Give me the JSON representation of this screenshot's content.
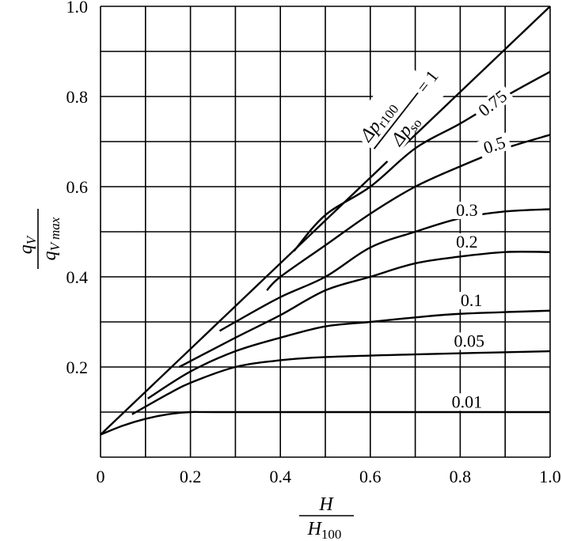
{
  "chart_data": {
    "type": "line",
    "title": "",
    "xlabel": {
      "numerator": "H",
      "denominator": "H",
      "denominator_sub": "100"
    },
    "ylabel": {
      "numerator": "q",
      "numerator_sub": "V",
      "denominator": "q",
      "denominator_sub": "V max"
    },
    "xlim": [
      0,
      1.0
    ],
    "ylim": [
      0,
      1.0
    ],
    "grid": true,
    "xticks": [
      "0",
      "0.2",
      "0.4",
      "0.6",
      "0.8",
      "1.0"
    ],
    "yticks": [
      "0.2",
      "0.4",
      "0.6",
      "0.8",
      "1.0"
    ],
    "parameter_label": {
      "num": "Δp",
      "num_sub": "r100",
      "den": "Δp",
      "den_sub": "so",
      "eq": "= 1"
    },
    "series": [
      {
        "name": "1",
        "label": "",
        "points": [
          [
            0,
            0.05
          ],
          [
            1.0,
            1.0
          ]
        ]
      },
      {
        "name": "0.75",
        "label": "0.75",
        "points": [
          [
            0.43,
            0.457
          ],
          [
            0.5,
            0.537
          ],
          [
            0.6,
            0.6
          ],
          [
            0.7,
            0.685
          ],
          [
            0.8,
            0.74
          ],
          [
            0.9,
            0.8
          ],
          [
            1.0,
            0.855
          ]
        ]
      },
      {
        "name": "0.5",
        "label": "0.5",
        "points": [
          [
            0.37,
            0.37
          ],
          [
            0.4,
            0.4
          ],
          [
            0.5,
            0.47
          ],
          [
            0.6,
            0.54
          ],
          [
            0.7,
            0.6
          ],
          [
            0.8,
            0.645
          ],
          [
            0.9,
            0.685
          ],
          [
            1.0,
            0.715
          ]
        ]
      },
      {
        "name": "0.3",
        "label": "0.3",
        "points": [
          [
            0.265,
            0.28
          ],
          [
            0.3,
            0.3
          ],
          [
            0.4,
            0.355
          ],
          [
            0.5,
            0.4
          ],
          [
            0.6,
            0.465
          ],
          [
            0.7,
            0.5
          ],
          [
            0.8,
            0.53
          ],
          [
            0.9,
            0.545
          ],
          [
            1.0,
            0.55
          ]
        ]
      },
      {
        "name": "0.2",
        "label": "0.2",
        "points": [
          [
            0.175,
            0.2
          ],
          [
            0.3,
            0.265
          ],
          [
            0.4,
            0.315
          ],
          [
            0.5,
            0.37
          ],
          [
            0.6,
            0.4
          ],
          [
            0.7,
            0.43
          ],
          [
            0.8,
            0.445
          ],
          [
            0.9,
            0.455
          ],
          [
            1.0,
            0.455
          ]
        ]
      },
      {
        "name": "0.1",
        "label": "0.1",
        "points": [
          [
            0.105,
            0.13
          ],
          [
            0.2,
            0.19
          ],
          [
            0.3,
            0.235
          ],
          [
            0.4,
            0.265
          ],
          [
            0.5,
            0.29
          ],
          [
            0.6,
            0.3
          ],
          [
            0.7,
            0.31
          ],
          [
            0.8,
            0.318
          ],
          [
            1.0,
            0.325
          ]
        ]
      },
      {
        "name": "0.05",
        "label": "0.05",
        "points": [
          [
            0.07,
            0.095
          ],
          [
            0.15,
            0.14
          ],
          [
            0.2,
            0.165
          ],
          [
            0.3,
            0.2
          ],
          [
            0.4,
            0.215
          ],
          [
            0.5,
            0.222
          ],
          [
            0.7,
            0.228
          ],
          [
            1.0,
            0.235
          ]
        ]
      },
      {
        "name": "0.01",
        "label": "0.01",
        "points": [
          [
            0,
            0.05
          ],
          [
            0.05,
            0.07
          ],
          [
            0.1,
            0.085
          ],
          [
            0.15,
            0.095
          ],
          [
            0.2,
            0.1
          ],
          [
            0.3,
            0.1
          ],
          [
            1.0,
            0.1
          ]
        ]
      }
    ]
  }
}
